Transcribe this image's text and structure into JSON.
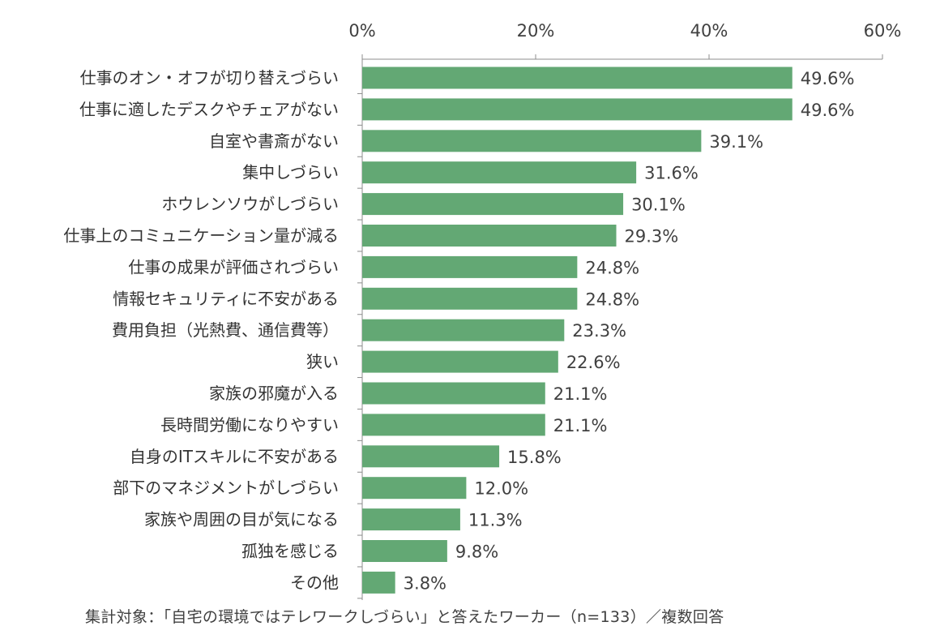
{
  "chart_data": {
    "type": "bar",
    "orientation": "horizontal",
    "categories": [
      "仕事のオン・オフが切り替えづらい",
      "仕事に適したデスクやチェアがない",
      "自室や書斎がない",
      "集中しづらい",
      "ホウレンソウがしづらい",
      "仕事上のコミュニケーション量が減る",
      "仕事の成果が評価されづらい",
      "情報セキュリティに不安がある",
      "費用負担（光熱費、通信費等）",
      "狭い",
      "家族の邪魔が入る",
      "長時間労働になりやすい",
      "自身のITスキルに不安がある",
      "部下のマネジメントがしづらい",
      "家族や周囲の目が気になる",
      "孤独を感じる",
      "その他"
    ],
    "values": [
      49.6,
      49.6,
      39.1,
      31.6,
      30.1,
      29.3,
      24.8,
      24.8,
      23.3,
      22.6,
      21.1,
      21.1,
      15.8,
      12.0,
      11.3,
      9.8,
      3.8
    ],
    "data_labels": [
      "49.6%",
      "49.6%",
      "39.1%",
      "31.6%",
      "30.1%",
      "29.3%",
      "24.8%",
      "24.8%",
      "23.3%",
      "22.6%",
      "21.1%",
      "21.1%",
      "15.8%",
      "12.0%",
      "11.3%",
      "9.8%",
      "3.8%"
    ],
    "x_ticks": [
      0,
      20,
      40,
      60
    ],
    "x_tick_labels": [
      "0%",
      "20%",
      "40%",
      "60%"
    ],
    "xlim": [
      0,
      60
    ],
    "x_axis_position": "top",
    "grid": false,
    "bar_color": "#63a874"
  },
  "footnote": "集計対象：「自宅の環境ではテレワークしづらい」と答えたワーカー（n=133）／複数回答"
}
